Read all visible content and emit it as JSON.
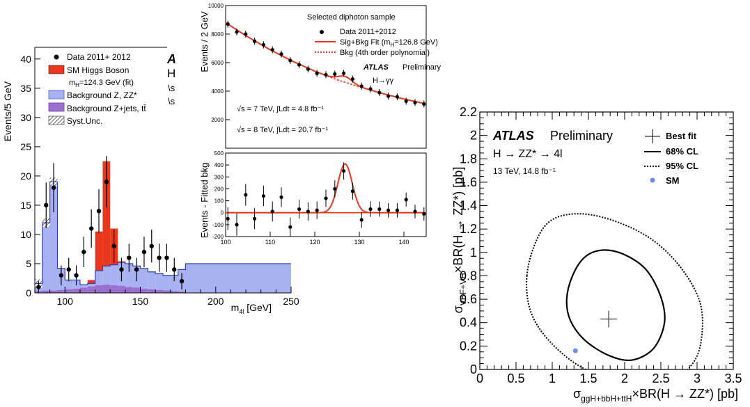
{
  "chart_data": [
    {
      "type": "bar",
      "title": "",
      "xlabel": "m_4l [GeV]",
      "ylabel": "Events/5 GeV",
      "xlim": [
        80,
        250
      ],
      "ylim": [
        0,
        42
      ],
      "xticks": [
        "100",
        "150",
        "200",
        "250"
      ],
      "yticks": [
        "0",
        "5",
        "10",
        "15",
        "20",
        "25",
        "30",
        "35",
        "40"
      ],
      "header_letters": [
        "A",
        "H",
        "\\s",
        "\\s"
      ],
      "legend": {
        "data": "Data 2011+ 2012",
        "sm": "SM Higgs Boson",
        "sm_sub": "m_H=124.3 GeV (fit)",
        "bkg_zz": "Background Z, ZZ*",
        "bkg_zjets": "Background Z+jets, tt̄",
        "syst": "Syst.Unc."
      },
      "bin_edges": [
        80,
        85,
        90,
        95,
        100,
        105,
        110,
        115,
        120,
        125,
        130,
        135,
        140,
        145,
        150,
        155,
        160,
        165,
        170,
        175,
        180,
        250
      ],
      "bkg_zz": [
        1.6,
        12.0,
        19.0,
        4.2,
        2.2,
        2.2,
        1.4,
        1.6,
        3.8,
        4.6,
        4.8,
        5.2,
        5.0,
        4.6,
        4.2,
        3.6,
        3.3,
        3.0,
        3.0,
        4.0,
        5.0
      ],
      "bkg_zjets": [
        0.3,
        0.4,
        0.4,
        0.5,
        0.6,
        0.7,
        0.9,
        1.1,
        1.3,
        1.4,
        1.3,
        1.2,
        1.0,
        0.9,
        0.7,
        0.6,
        0.5,
        0.4,
        0.3,
        0.2,
        0.0
      ],
      "signal_top": [
        1.6,
        12.0,
        19.0,
        4.2,
        2.2,
        2.2,
        1.4,
        2.2,
        10.5,
        22.5,
        11.0,
        5.4,
        5.0,
        4.6,
        4.2,
        3.6,
        3.3,
        3.0,
        3.0,
        4.0,
        5.0
      ],
      "data_points": [
        {
          "x": 82.5,
          "y": 1,
          "e": 1.0
        },
        {
          "x": 87.5,
          "y": 15,
          "e": 3.9
        },
        {
          "x": 92.5,
          "y": 18,
          "e": 4.2
        },
        {
          "x": 97.5,
          "y": 3,
          "e": 1.7
        },
        {
          "x": 102.5,
          "y": 4,
          "e": 2.0
        },
        {
          "x": 107.5,
          "y": 3,
          "e": 1.7
        },
        {
          "x": 112.5,
          "y": 7,
          "e": 2.6
        },
        {
          "x": 117.5,
          "y": 11,
          "e": 3.3
        },
        {
          "x": 122.5,
          "y": 14,
          "e": 3.7
        },
        {
          "x": 127.5,
          "y": 19,
          "e": 4.4
        },
        {
          "x": 132.5,
          "y": 8,
          "e": 2.8
        },
        {
          "x": 137.5,
          "y": 4,
          "e": 2.0
        },
        {
          "x": 142.5,
          "y": 6,
          "e": 2.4
        },
        {
          "x": 147.5,
          "y": 4,
          "e": 2.0
        },
        {
          "x": 152.5,
          "y": 7,
          "e": 2.6
        },
        {
          "x": 157.5,
          "y": 8,
          "e": 2.8
        },
        {
          "x": 162.5,
          "y": 6,
          "e": 2.4
        },
        {
          "x": 167.5,
          "y": 6,
          "e": 2.4
        },
        {
          "x": 172.5,
          "y": 4,
          "e": 2.0
        },
        {
          "x": 177.5,
          "y": 2,
          "e": 1.4
        }
      ]
    },
    {
      "type": "scatter",
      "title": "Selected diphoton sample",
      "ylabel": "Events / 2 GeV",
      "xlim": [
        100,
        145
      ],
      "ylim": [
        0,
        10000
      ],
      "yticks": [
        "2000",
        "4000",
        "6000",
        "8000",
        "10000"
      ],
      "legend": {
        "data": "Data 2011+2012",
        "fit": "Sig+Bkg Fit (m_H=126.8 GeV)",
        "bkg": "Bkg (4th order polynomial)"
      },
      "atlas": "ATLAS",
      "prelim": "Preliminary",
      "channel": "H→γγ",
      "lumi7": "√s = 7 TeV, ∫Ldt = 4.8 fb⁻¹",
      "lumi8": "√s = 8 TeV, ∫Ldt = 20.7 fb⁻¹",
      "data_points": [
        {
          "x": 100.5,
          "y": 8700
        },
        {
          "x": 102.5,
          "y": 8150
        },
        {
          "x": 104.5,
          "y": 8000
        },
        {
          "x": 106.5,
          "y": 7500
        },
        {
          "x": 108.5,
          "y": 7250
        },
        {
          "x": 110.5,
          "y": 6900
        },
        {
          "x": 112.5,
          "y": 6600
        },
        {
          "x": 114.5,
          "y": 6150
        },
        {
          "x": 116.5,
          "y": 5850
        },
        {
          "x": 118.5,
          "y": 5550
        },
        {
          "x": 120.5,
          "y": 5250
        },
        {
          "x": 122.5,
          "y": 5150
        },
        {
          "x": 124.5,
          "y": 5200
        },
        {
          "x": 126.5,
          "y": 5250
        },
        {
          "x": 128.5,
          "y": 4850
        },
        {
          "x": 130.5,
          "y": 4350
        },
        {
          "x": 132.5,
          "y": 4150
        },
        {
          "x": 134.5,
          "y": 3900
        },
        {
          "x": 136.5,
          "y": 3650
        },
        {
          "x": 138.5,
          "y": 3600
        },
        {
          "x": 140.5,
          "y": 3300
        },
        {
          "x": 142.5,
          "y": 3200
        },
        {
          "x": 144.5,
          "y": 3100
        }
      ],
      "bkg_poly": [
        {
          "x": 100,
          "y": 8800
        },
        {
          "x": 105,
          "y": 7800
        },
        {
          "x": 110,
          "y": 6900
        },
        {
          "x": 115,
          "y": 6100
        },
        {
          "x": 120,
          "y": 5400
        },
        {
          "x": 125,
          "y": 4800
        },
        {
          "x": 130,
          "y": 4300
        },
        {
          "x": 135,
          "y": 3850
        },
        {
          "x": 140,
          "y": 3450
        },
        {
          "x": 145,
          "y": 3100
        }
      ]
    },
    {
      "type": "scatter",
      "ylabel": "Events - Fitted bkg",
      "xlabel": "",
      "xlim": [
        100,
        145
      ],
      "ylim": [
        -200,
        500
      ],
      "xticks": [
        "100",
        "110",
        "120",
        "130",
        "140"
      ],
      "yticks": [
        "-200",
        "-100",
        "0",
        "100",
        "200",
        "300",
        "400",
        "500"
      ],
      "signal_peak": {
        "mean": 126.8,
        "sigma": 1.6,
        "amplitude": 410
      },
      "data_points": [
        {
          "x": 100.5,
          "y": -50,
          "e": 95
        },
        {
          "x": 102.5,
          "y": -100,
          "e": 93
        },
        {
          "x": 104.5,
          "y": 150,
          "e": 91
        },
        {
          "x": 106.5,
          "y": -50,
          "e": 88
        },
        {
          "x": 108.5,
          "y": 140,
          "e": 86
        },
        {
          "x": 110.5,
          "y": 10,
          "e": 84
        },
        {
          "x": 112.5,
          "y": 130,
          "e": 82
        },
        {
          "x": 114.5,
          "y": -120,
          "e": 80
        },
        {
          "x": 116.5,
          "y": 30,
          "e": 78
        },
        {
          "x": 118.5,
          "y": 10,
          "e": 76
        },
        {
          "x": 120.5,
          "y": 20,
          "e": 74
        },
        {
          "x": 122.5,
          "y": 120,
          "e": 73
        },
        {
          "x": 124.5,
          "y": 200,
          "e": 72
        },
        {
          "x": 126.5,
          "y": 350,
          "e": 72
        },
        {
          "x": 128.5,
          "y": 180,
          "e": 70
        },
        {
          "x": 130.5,
          "y": -60,
          "e": 67
        },
        {
          "x": 132.5,
          "y": 30,
          "e": 65
        },
        {
          "x": 134.5,
          "y": 30,
          "e": 63
        },
        {
          "x": 136.5,
          "y": 20,
          "e": 61
        },
        {
          "x": 138.5,
          "y": 20,
          "e": 61
        },
        {
          "x": 140.5,
          "y": 110,
          "e": 58
        },
        {
          "x": 142.5,
          "y": 10,
          "e": 57
        },
        {
          "x": 144.5,
          "y": -10,
          "e": 56
        }
      ]
    },
    {
      "type": "contour",
      "xlabel": "σ_ggH+bbH+ttH×BR(H → ZZ*) [pb]",
      "ylabel": "σ_VBF+VH×BR(H → ZZ*) [pb]",
      "xlim": [
        0,
        3.5
      ],
      "ylim": [
        0,
        2.2
      ],
      "xticks": [
        "0",
        "0.5",
        "1",
        "1.5",
        "2",
        "2.5",
        "3",
        "3.5"
      ],
      "yticks": [
        "0",
        "0.2",
        "0.4",
        "0.6",
        "0.8",
        "1",
        "1.2",
        "1.4",
        "1.6",
        "1.8",
        "2",
        "2.2"
      ],
      "atlas": "ATLAS",
      "prelim": "Preliminary",
      "process": "H → ZZ* → 4l",
      "energy": "13 TeV, 14.8 fb⁻¹",
      "legend": {
        "best": "Best fit",
        "cl68": "68% CL",
        "cl95": "95% CL",
        "sm": "SM"
      },
      "best_fit": {
        "x": 1.78,
        "y": 0.43
      },
      "sm_point": {
        "x": 1.32,
        "y": 0.16
      },
      "cl68": [
        {
          "x": 1.2,
          "y": 0.6
        },
        {
          "x": 1.28,
          "y": 0.8
        },
        {
          "x": 1.45,
          "y": 0.96
        },
        {
          "x": 1.7,
          "y": 1.02
        },
        {
          "x": 2.0,
          "y": 0.98
        },
        {
          "x": 2.3,
          "y": 0.85
        },
        {
          "x": 2.5,
          "y": 0.62
        },
        {
          "x": 2.55,
          "y": 0.4
        },
        {
          "x": 2.4,
          "y": 0.18
        },
        {
          "x": 2.1,
          "y": 0.08
        },
        {
          "x": 1.78,
          "y": 0.12
        },
        {
          "x": 1.45,
          "y": 0.25
        },
        {
          "x": 1.25,
          "y": 0.42
        }
      ],
      "cl95": [
        {
          "x": 0.65,
          "y": 0.8
        },
        {
          "x": 0.78,
          "y": 1.1
        },
        {
          "x": 1.0,
          "y": 1.28
        },
        {
          "x": 1.4,
          "y": 1.33
        },
        {
          "x": 1.9,
          "y": 1.26
        },
        {
          "x": 2.4,
          "y": 1.1
        },
        {
          "x": 2.8,
          "y": 0.85
        },
        {
          "x": 3.05,
          "y": 0.55
        },
        {
          "x": 3.05,
          "y": 0.22
        },
        {
          "x": 2.9,
          "y": 0.02
        },
        {
          "x": 2.6,
          "y": -0.1
        },
        {
          "x": 2.0,
          "y": -0.12
        },
        {
          "x": 1.4,
          "y": 0.02
        },
        {
          "x": 0.95,
          "y": 0.25
        },
        {
          "x": 0.7,
          "y": 0.5
        }
      ]
    }
  ]
}
